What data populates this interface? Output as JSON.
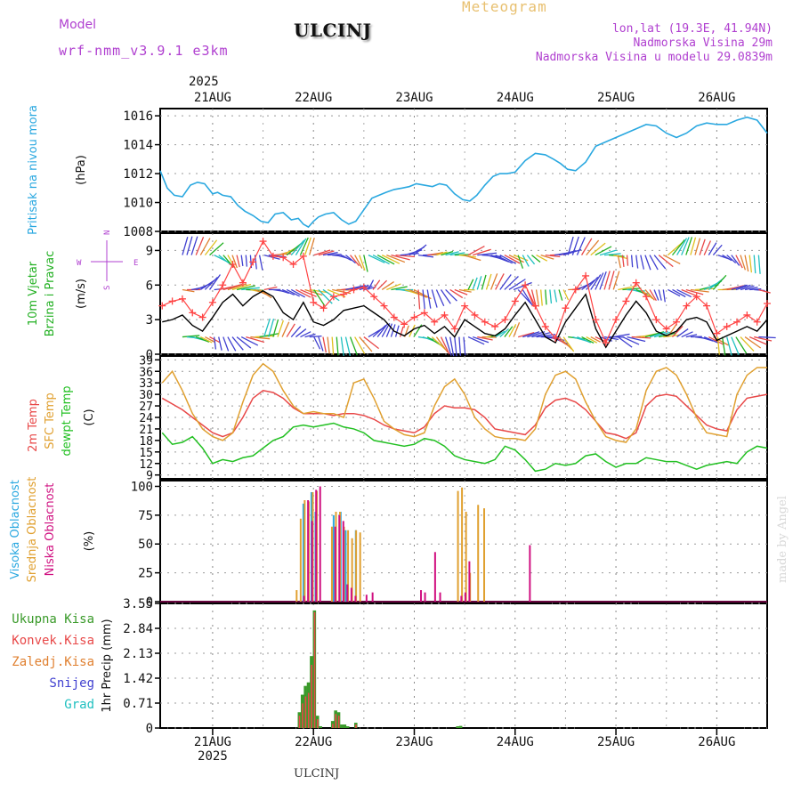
{
  "header": {
    "model_label": "Model",
    "model_name": "wrf-nmm_v3.9.1 e3km",
    "station": "ULCINJ",
    "product": "Meteogram",
    "lonlat": "lon,lat (19.3E, 41.94N)",
    "altitude": "Nadmorska Visina 29m",
    "model_altitude": "Nadmorska Visina u modelu 29.0839m",
    "year": "2025",
    "footer_station": "ULCINJ",
    "credit": "made by Angel"
  },
  "colors": {
    "pressure": "#2aa8e0",
    "wind_label": "#22b022",
    "gust": "#ff4444",
    "temp2m": "#e84848",
    "sfc": "#e0a030",
    "dewpt": "#22c022",
    "cloud_high": "#2aa8e0",
    "cloud_mid": "#e0a030",
    "cloud_low": "#d01080",
    "precip_total": "#3a9a2a",
    "precip_conv": "#e84848",
    "precip_frozen": "#e08030",
    "snow": "#4040d0",
    "graupel": "#20c0c0",
    "compass": "#b040d0"
  },
  "time_axis": {
    "days": [
      "21AUG",
      "22AUG",
      "23AUG",
      "24AUG",
      "25AUG",
      "26AUG"
    ],
    "day_positions": [
      1,
      2,
      3,
      4,
      5,
      6
    ],
    "range": [
      0.48,
      6.5
    ],
    "bottom_year": "2025"
  },
  "compass": {
    "north": "N",
    "south": "S",
    "west": "W",
    "east": "E"
  },
  "chart_data": [
    {
      "type": "line",
      "name": "pressure",
      "ylabel_lines": [
        "Pritisak na nivou mora"
      ],
      "unit": "(hPa)",
      "ylim": [
        1008,
        1016.5
      ],
      "yticks": [
        1008,
        1010,
        1012,
        1014,
        1016
      ],
      "series": [
        {
          "name": "MSLP",
          "x": [
            0.48,
            0.55,
            0.62,
            0.7,
            0.78,
            0.85,
            0.92,
            1.0,
            1.05,
            1.1,
            1.18,
            1.25,
            1.32,
            1.4,
            1.48,
            1.55,
            1.62,
            1.7,
            1.78,
            1.85,
            1.9,
            1.95,
            2.0,
            2.05,
            2.12,
            2.2,
            2.28,
            2.35,
            2.42,
            2.5,
            2.58,
            2.65,
            2.72,
            2.8,
            2.88,
            2.95,
            3.02,
            3.1,
            3.18,
            3.25,
            3.32,
            3.4,
            3.48,
            3.55,
            3.62,
            3.7,
            3.78,
            3.85,
            3.92,
            4.0,
            4.1,
            4.2,
            4.3,
            4.38,
            4.45,
            4.52,
            4.6,
            4.7,
            4.8,
            4.9,
            5.0,
            5.1,
            5.2,
            5.3,
            5.4,
            5.5,
            5.6,
            5.7,
            5.8,
            5.9,
            6.0,
            6.1,
            6.2,
            6.3,
            6.4,
            6.5
          ],
          "values": [
            1012.2,
            1011.0,
            1010.5,
            1010.4,
            1011.2,
            1011.4,
            1011.3,
            1010.6,
            1010.7,
            1010.5,
            1010.4,
            1009.8,
            1009.4,
            1009.1,
            1008.7,
            1008.6,
            1009.2,
            1009.3,
            1008.8,
            1008.9,
            1008.5,
            1008.3,
            1008.7,
            1009.0,
            1009.2,
            1009.3,
            1008.8,
            1008.5,
            1008.7,
            1009.5,
            1010.3,
            1010.5,
            1010.7,
            1010.9,
            1011.0,
            1011.1,
            1011.3,
            1011.2,
            1011.1,
            1011.3,
            1011.2,
            1010.6,
            1010.2,
            1010.1,
            1010.5,
            1011.2,
            1011.8,
            1012.0,
            1012.0,
            1012.1,
            1012.9,
            1013.4,
            1013.3,
            1013.0,
            1012.7,
            1012.3,
            1012.2,
            1012.8,
            1013.9,
            1014.2,
            1014.5,
            1014.8,
            1015.1,
            1015.4,
            1015.3,
            1014.8,
            1014.5,
            1014.8,
            1015.3,
            1015.5,
            1015.4,
            1015.4,
            1015.7,
            1015.9,
            1015.7,
            1014.8
          ]
        }
      ]
    },
    {
      "type": "line",
      "name": "wind",
      "ylabel_lines": [
        "10m Vjetar",
        "Brzina i Pravac"
      ],
      "unit": "(m/s)",
      "ylim": [
        0,
        10.5
      ],
      "yticks": [
        0,
        3,
        6,
        9
      ],
      "series": [
        {
          "name": "wind speed",
          "x": [
            0.5,
            0.6,
            0.7,
            0.8,
            0.9,
            1.0,
            1.1,
            1.2,
            1.3,
            1.4,
            1.5,
            1.6,
            1.7,
            1.8,
            1.9,
            2.0,
            2.1,
            2.2,
            2.3,
            2.4,
            2.5,
            2.6,
            2.7,
            2.8,
            2.9,
            3.0,
            3.1,
            3.2,
            3.3,
            3.4,
            3.5,
            3.6,
            3.7,
            3.8,
            3.9,
            4.0,
            4.1,
            4.2,
            4.3,
            4.4,
            4.5,
            4.6,
            4.7,
            4.8,
            4.9,
            5.0,
            5.1,
            5.2,
            5.3,
            5.4,
            5.5,
            5.6,
            5.7,
            5.8,
            5.9,
            6.0,
            6.1,
            6.2,
            6.3,
            6.4,
            6.5
          ],
          "values": [
            2.8,
            3.0,
            3.4,
            2.5,
            2.0,
            3.2,
            4.5,
            5.2,
            4.2,
            5.0,
            5.5,
            5.0,
            3.6,
            3.0,
            4.5,
            2.8,
            2.5,
            3.0,
            3.8,
            4.0,
            4.2,
            3.6,
            3.0,
            2.0,
            1.6,
            2.2,
            2.5,
            1.8,
            2.4,
            1.5,
            3.0,
            2.4,
            1.8,
            1.6,
            2.2,
            3.4,
            4.5,
            3.0,
            1.5,
            1.0,
            2.8,
            4.0,
            5.2,
            2.2,
            0.6,
            2.0,
            3.4,
            4.6,
            3.6,
            2.0,
            1.6,
            2.0,
            3.0,
            3.2,
            2.8,
            1.2,
            1.6,
            2.0,
            2.4,
            2.0,
            3.0
          ]
        },
        {
          "name": "gust",
          "x": [
            0.5,
            0.6,
            0.7,
            0.8,
            0.9,
            1.0,
            1.1,
            1.2,
            1.3,
            1.4,
            1.5,
            1.6,
            1.7,
            1.8,
            1.9,
            2.0,
            2.1,
            2.2,
            2.3,
            2.4,
            2.5,
            2.6,
            2.7,
            2.8,
            2.9,
            3.0,
            3.1,
            3.2,
            3.3,
            3.4,
            3.5,
            3.6,
            3.7,
            3.8,
            3.9,
            4.0,
            4.1,
            4.2,
            4.3,
            4.4,
            4.5,
            4.6,
            4.7,
            4.8,
            4.9,
            5.0,
            5.1,
            5.2,
            5.3,
            5.4,
            5.5,
            5.6,
            5.7,
            5.8,
            5.9,
            6.0,
            6.1,
            6.2,
            6.3,
            6.4,
            6.5
          ],
          "values": [
            4.2,
            4.6,
            4.8,
            3.6,
            3.2,
            4.5,
            6.0,
            7.8,
            6.2,
            8.0,
            9.8,
            8.5,
            8.4,
            7.8,
            8.5,
            4.5,
            4.0,
            5.0,
            5.2,
            5.6,
            5.8,
            5.0,
            4.2,
            3.2,
            2.6,
            3.2,
            3.6,
            2.8,
            3.4,
            2.2,
            4.2,
            3.4,
            2.8,
            2.4,
            3.0,
            4.6,
            6.0,
            4.2,
            2.4,
            1.4,
            4.0,
            5.6,
            6.8,
            3.0,
            1.0,
            3.0,
            4.6,
            6.2,
            5.0,
            3.0,
            2.2,
            2.8,
            4.2,
            5.0,
            4.2,
            1.8,
            2.4,
            2.8,
            3.4,
            2.8,
            4.4
          ]
        }
      ]
    },
    {
      "type": "line",
      "name": "temperature",
      "ylabel_lines": [
        "2m Temp",
        "SFC Temp",
        "dewpt Temp"
      ],
      "unit": "(C)",
      "ylim": [
        8,
        40
      ],
      "yticks": [
        9,
        12,
        15,
        18,
        21,
        24,
        27,
        30,
        33,
        36,
        39
      ],
      "series": [
        {
          "name": "2m Temp",
          "x": [
            0.5,
            0.6,
            0.7,
            0.8,
            0.9,
            1.0,
            1.1,
            1.2,
            1.3,
            1.4,
            1.5,
            1.6,
            1.7,
            1.8,
            1.9,
            2.0,
            2.1,
            2.2,
            2.3,
            2.4,
            2.5,
            2.6,
            2.7,
            2.8,
            2.9,
            3.0,
            3.1,
            3.2,
            3.3,
            3.4,
            3.5,
            3.6,
            3.7,
            3.8,
            3.9,
            4.0,
            4.1,
            4.2,
            4.3,
            4.4,
            4.5,
            4.6,
            4.7,
            4.8,
            4.9,
            5.0,
            5.1,
            5.2,
            5.3,
            5.4,
            5.5,
            5.6,
            5.7,
            5.8,
            5.9,
            6.0,
            6.1,
            6.2,
            6.3,
            6.4,
            6.5
          ],
          "values": [
            29,
            27.5,
            26,
            24,
            22,
            20,
            19,
            20,
            24,
            29,
            31,
            30.5,
            29,
            26.5,
            25,
            25,
            25,
            24.5,
            25,
            25,
            24.5,
            23.5,
            22,
            21,
            20.5,
            20,
            21.5,
            25,
            27,
            26.5,
            26.5,
            26,
            24,
            21,
            20.5,
            20,
            19.5,
            22,
            26.5,
            28.5,
            29,
            28,
            26,
            23,
            20,
            19.5,
            18.5,
            20,
            27,
            29.5,
            30,
            29.5,
            27,
            24.5,
            22,
            21,
            20.5,
            26,
            29,
            29.5,
            30
          ]
        },
        {
          "name": "SFC Temp",
          "x": [
            0.5,
            0.6,
            0.7,
            0.8,
            0.9,
            1.0,
            1.1,
            1.2,
            1.3,
            1.4,
            1.5,
            1.6,
            1.7,
            1.8,
            1.9,
            2.0,
            2.1,
            2.2,
            2.3,
            2.4,
            2.5,
            2.6,
            2.7,
            2.8,
            2.9,
            3.0,
            3.1,
            3.2,
            3.3,
            3.4,
            3.5,
            3.6,
            3.7,
            3.8,
            3.9,
            4.0,
            4.1,
            4.2,
            4.3,
            4.4,
            4.5,
            4.6,
            4.7,
            4.8,
            4.9,
            5.0,
            5.1,
            5.2,
            5.3,
            5.4,
            5.5,
            5.6,
            5.7,
            5.8,
            5.9,
            6.0,
            6.1,
            6.2,
            6.3,
            6.4,
            6.5
          ],
          "values": [
            33,
            36,
            31,
            25,
            21,
            19,
            18,
            20,
            28,
            35,
            38,
            36,
            31,
            27,
            25,
            25.5,
            25,
            25,
            24,
            33,
            34,
            29,
            23,
            21,
            19.5,
            19,
            20,
            27,
            32,
            34,
            30,
            24,
            21,
            19,
            18.5,
            18.5,
            18,
            21,
            30,
            35,
            36,
            34,
            28,
            23,
            19,
            18,
            17.5,
            21,
            31,
            36,
            37,
            35,
            30,
            24,
            20,
            19.5,
            19,
            30,
            35,
            37,
            37
          ]
        },
        {
          "name": "dewpt Temp",
          "x": [
            0.5,
            0.6,
            0.7,
            0.8,
            0.9,
            1.0,
            1.1,
            1.2,
            1.3,
            1.4,
            1.5,
            1.6,
            1.7,
            1.8,
            1.9,
            2.0,
            2.1,
            2.2,
            2.3,
            2.4,
            2.5,
            2.6,
            2.7,
            2.8,
            2.9,
            3.0,
            3.1,
            3.2,
            3.3,
            3.4,
            3.5,
            3.6,
            3.7,
            3.8,
            3.9,
            4.0,
            4.1,
            4.2,
            4.3,
            4.4,
            4.5,
            4.6,
            4.7,
            4.8,
            4.9,
            5.0,
            5.1,
            5.2,
            5.3,
            5.4,
            5.5,
            5.6,
            5.7,
            5.8,
            5.9,
            6.0,
            6.1,
            6.2,
            6.3,
            6.4,
            6.5
          ],
          "values": [
            20,
            17,
            17.5,
            19,
            16,
            12,
            13,
            12.5,
            13.5,
            14,
            16,
            18,
            19,
            21.5,
            22,
            21.5,
            22,
            22.5,
            21.5,
            21,
            20,
            18,
            17.5,
            17,
            16.5,
            17,
            18.5,
            18,
            16.5,
            14,
            13,
            12.5,
            12,
            13,
            16.5,
            15.5,
            13,
            10,
            10.5,
            12,
            11.5,
            12,
            14,
            14.5,
            12.5,
            11,
            12,
            12,
            13.5,
            13,
            12.5,
            12.5,
            11.5,
            10.5,
            11.5,
            12,
            12.5,
            12,
            15,
            16.5,
            16
          ]
        }
      ]
    },
    {
      "type": "bar",
      "name": "clouds",
      "ylabel_lines": [
        "Visoka Oblacnost",
        "Srednja Oblacnost",
        "Niska Oblacnost"
      ],
      "unit": "(%)",
      "ylim": [
        0,
        105
      ],
      "yticks": [
        0,
        25,
        50,
        75,
        100
      ],
      "series": [
        {
          "name": "Visoka",
          "x": [
            1.9,
            1.98,
            2.02,
            2.2,
            2.27,
            2.32,
            2.42
          ],
          "values": [
            85,
            95,
            78,
            75,
            78,
            62,
            62
          ]
        },
        {
          "name": "Srednja",
          "x": [
            1.82,
            1.86,
            1.9,
            1.94,
            1.98,
            2.02,
            2.17,
            2.21,
            2.25,
            2.29,
            2.33,
            2.37,
            2.41,
            2.45,
            3.42,
            3.46,
            3.5,
            3.54,
            3.62,
            3.68
          ],
          "values": [
            10,
            72,
            88,
            87,
            95,
            96,
            65,
            78,
            78,
            65,
            62,
            55,
            62,
            60,
            96,
            99,
            78,
            25,
            84,
            81
          ]
        },
        {
          "name": "Niska",
          "x": [
            1.88,
            1.92,
            1.96,
            2.0,
            2.04,
            2.19,
            2.23,
            2.27,
            2.31,
            2.35,
            2.39,
            2.5,
            2.56,
            3.04,
            3.08,
            3.18,
            3.23,
            3.44,
            3.48,
            3.52,
            4.12
          ],
          "values": [
            5,
            88,
            70,
            97,
            100,
            65,
            75,
            70,
            15,
            12,
            5,
            6,
            8,
            10,
            8,
            43,
            8,
            5,
            8,
            35,
            49
          ]
        }
      ]
    },
    {
      "type": "bar",
      "name": "precip",
      "ylabel_lines": [
        "Ukupna Kisa",
        "Konvek.Kisa",
        "Zaledj.Kisa",
        "Snijeg",
        "Grad"
      ],
      "unit": "1hr Precip (mm)",
      "ylim": [
        0,
        3.55
      ],
      "yticks": [
        0,
        0.71,
        1.42,
        2.13,
        2.84,
        3.55
      ],
      "series": [
        {
          "name": "Ukupna Kisa",
          "x": [
            1.86,
            1.89,
            1.92,
            1.95,
            1.98,
            2.01,
            2.04,
            2.07,
            2.19,
            2.22,
            2.25,
            2.28,
            2.31,
            2.34,
            2.42,
            3.43,
            3.46
          ],
          "values": [
            0.45,
            0.95,
            1.2,
            1.3,
            2.05,
            3.35,
            0.35,
            0.05,
            0.2,
            0.5,
            0.45,
            0.1,
            0.1,
            0.05,
            0.15,
            0.05,
            0.06
          ]
        },
        {
          "name": "Konvek.Kisa",
          "x": [
            1.86,
            1.89,
            1.92,
            1.95,
            1.98,
            2.01,
            2.04,
            2.19,
            2.22,
            2.25,
            2.42
          ],
          "values": [
            0.35,
            0.7,
            0.9,
            1.0,
            1.8,
            3.3,
            0.25,
            0.12,
            0.4,
            0.35,
            0.1
          ]
        }
      ]
    }
  ]
}
